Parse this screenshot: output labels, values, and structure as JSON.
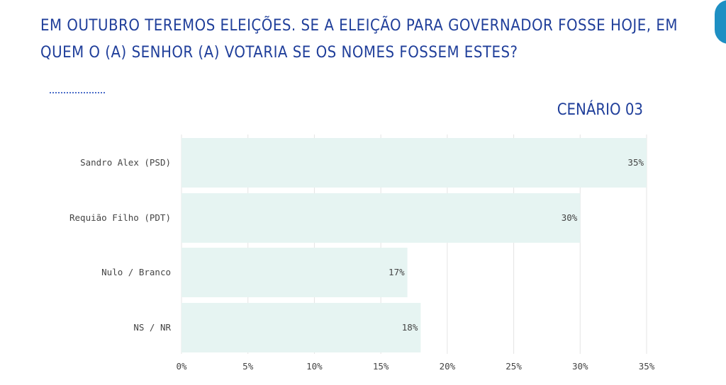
{
  "header": {
    "title": "EM OUTUBRO TEREMOS ELEIÇÕES. SE A ELEIÇÃO PARA GOVERNADOR  FOSSE HOJE, EM QUEM O (A) SENHOR (A) VOTARIA SE OS NOMES FOSSEM ESTES?",
    "scenario": "CENÁRIO 03"
  },
  "colors": {
    "title": "#1f3e9a",
    "bar": "#e6f4f2",
    "grid": "#e4e4e4",
    "badge": "#1e8fc3"
  },
  "chart_data": {
    "type": "bar",
    "orientation": "horizontal",
    "categories": [
      "Sandro Alex (PSD)",
      "Requião Filho (PDT)",
      "Nulo / Branco",
      "NS / NR"
    ],
    "values": [
      35,
      30,
      17,
      18
    ],
    "value_labels": [
      "35%",
      "30%",
      "17%",
      "18%"
    ],
    "xlim": [
      0,
      35
    ],
    "xticks": [
      0,
      5,
      10,
      15,
      20,
      25,
      30,
      35
    ],
    "xtick_labels": [
      "0%",
      "5%",
      "10%",
      "15%",
      "20%",
      "25%",
      "30%",
      "35%"
    ],
    "grid": true
  }
}
